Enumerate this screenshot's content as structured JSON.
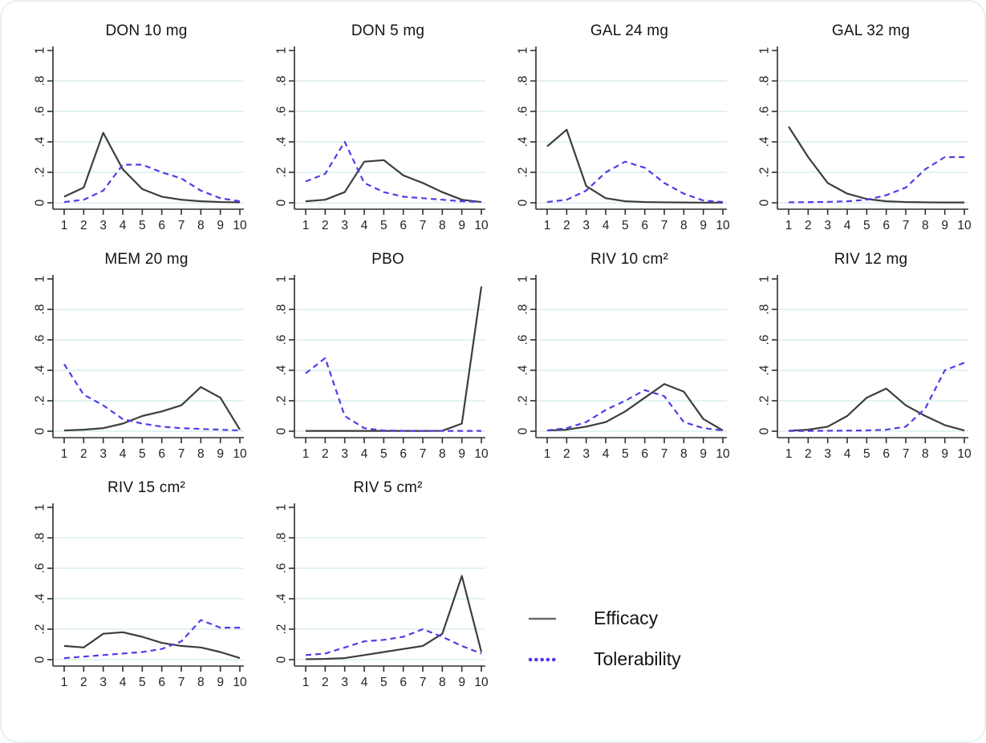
{
  "figure": {
    "background": "#ffffff",
    "border_color": "#e9eff1"
  },
  "colors": {
    "efficacy": "#3d3d3d",
    "tolerability": "#5639e8",
    "grid": "#daedee",
    "axis": "#2f2f2f",
    "legend_line": "#6a6a6a"
  },
  "legend": {
    "position": "bottom-right",
    "items": [
      {
        "label": "Efficacy",
        "style": "solid",
        "color": "#3d3d3d"
      },
      {
        "label": "Tolerability",
        "style": "dotted",
        "color": "#5639e8"
      }
    ]
  },
  "axis": {
    "x_ticks": [
      1,
      2,
      3,
      4,
      5,
      6,
      7,
      8,
      9,
      10
    ],
    "y_ticks": [
      0,
      0.2,
      0.4,
      0.6,
      0.8,
      1
    ],
    "y_tick_labels": [
      "0",
      ".2",
      ".4",
      ".6",
      ".8",
      "1"
    ],
    "grid_values": [
      0,
      0.2,
      0.4,
      0.6,
      0.8
    ],
    "xlim": [
      1,
      10
    ],
    "ylim": [
      0,
      1
    ],
    "y_labels_rotated": true
  },
  "chart_data": [
    {
      "type": "line",
      "title": "DON 10 mg",
      "x": [
        1,
        2,
        3,
        4,
        5,
        6,
        7,
        8,
        9,
        10
      ],
      "series": [
        {
          "name": "Efficacy",
          "values": [
            0.04,
            0.1,
            0.46,
            0.22,
            0.09,
            0.04,
            0.02,
            0.01,
            0.005,
            0.003
          ]
        },
        {
          "name": "Tolerability",
          "values": [
            0.005,
            0.02,
            0.08,
            0.25,
            0.25,
            0.2,
            0.16,
            0.08,
            0.03,
            0.01
          ]
        }
      ]
    },
    {
      "type": "line",
      "title": "DON 5 mg",
      "x": [
        1,
        2,
        3,
        4,
        5,
        6,
        7,
        8,
        9,
        10
      ],
      "series": [
        {
          "name": "Efficacy",
          "values": [
            0.01,
            0.02,
            0.07,
            0.27,
            0.28,
            0.18,
            0.13,
            0.07,
            0.02,
            0.005
          ]
        },
        {
          "name": "Tolerability",
          "values": [
            0.14,
            0.19,
            0.4,
            0.13,
            0.07,
            0.04,
            0.03,
            0.02,
            0.01,
            0.005
          ]
        }
      ]
    },
    {
      "type": "line",
      "title": "GAL 24 mg",
      "x": [
        1,
        2,
        3,
        4,
        5,
        6,
        7,
        8,
        9,
        10
      ],
      "series": [
        {
          "name": "Efficacy",
          "values": [
            0.37,
            0.48,
            0.11,
            0.03,
            0.01,
            0.005,
            0.003,
            0.002,
            0.001,
            0.001
          ]
        },
        {
          "name": "Tolerability",
          "values": [
            0.005,
            0.02,
            0.08,
            0.2,
            0.27,
            0.23,
            0.13,
            0.06,
            0.015,
            0.005
          ]
        }
      ]
    },
    {
      "type": "line",
      "title": "GAL 32 mg",
      "x": [
        1,
        2,
        3,
        4,
        5,
        6,
        7,
        8,
        9,
        10
      ],
      "series": [
        {
          "name": "Efficacy",
          "values": [
            0.5,
            0.3,
            0.13,
            0.06,
            0.025,
            0.01,
            0.005,
            0.003,
            0.002,
            0.002
          ]
        },
        {
          "name": "Tolerability",
          "values": [
            0.003,
            0.004,
            0.006,
            0.01,
            0.02,
            0.05,
            0.1,
            0.22,
            0.3,
            0.3
          ]
        }
      ]
    },
    {
      "type": "line",
      "title": "MEM 20 mg",
      "x": [
        1,
        2,
        3,
        4,
        5,
        6,
        7,
        8,
        9,
        10
      ],
      "series": [
        {
          "name": "Efficacy",
          "values": [
            0.005,
            0.01,
            0.02,
            0.05,
            0.1,
            0.13,
            0.17,
            0.29,
            0.22,
            0.01
          ]
        },
        {
          "name": "Tolerability",
          "values": [
            0.44,
            0.24,
            0.17,
            0.08,
            0.05,
            0.03,
            0.02,
            0.015,
            0.01,
            0.005
          ]
        }
      ]
    },
    {
      "type": "line",
      "title": "PBO",
      "x": [
        1,
        2,
        3,
        4,
        5,
        6,
        7,
        8,
        9,
        10
      ],
      "series": [
        {
          "name": "Efficacy",
          "values": [
            0.002,
            0.002,
            0.002,
            0.002,
            0.002,
            0.002,
            0.002,
            0.003,
            0.05,
            0.95
          ]
        },
        {
          "name": "Tolerability",
          "values": [
            0.38,
            0.48,
            0.1,
            0.02,
            0.005,
            0.003,
            0.002,
            0.002,
            0.002,
            0.002
          ]
        }
      ]
    },
    {
      "type": "line",
      "title": "RIV 10 cm²",
      "x": [
        1,
        2,
        3,
        4,
        5,
        6,
        7,
        8,
        9,
        10
      ],
      "series": [
        {
          "name": "Efficacy",
          "values": [
            0.005,
            0.01,
            0.03,
            0.06,
            0.13,
            0.22,
            0.31,
            0.26,
            0.08,
            0.005
          ]
        },
        {
          "name": "Tolerability",
          "values": [
            0.005,
            0.02,
            0.06,
            0.14,
            0.2,
            0.27,
            0.23,
            0.06,
            0.02,
            0.005
          ]
        }
      ]
    },
    {
      "type": "line",
      "title": "RIV 12 mg",
      "x": [
        1,
        2,
        3,
        4,
        5,
        6,
        7,
        8,
        9,
        10
      ],
      "series": [
        {
          "name": "Efficacy",
          "values": [
            0.003,
            0.01,
            0.03,
            0.1,
            0.22,
            0.28,
            0.17,
            0.1,
            0.04,
            0.005
          ]
        },
        {
          "name": "Tolerability",
          "values": [
            0.002,
            0.002,
            0.003,
            0.004,
            0.005,
            0.01,
            0.03,
            0.15,
            0.4,
            0.45
          ]
        }
      ]
    },
    {
      "type": "line",
      "title": "RIV 15 cm²",
      "x": [
        1,
        2,
        3,
        4,
        5,
        6,
        7,
        8,
        9,
        10
      ],
      "series": [
        {
          "name": "Efficacy",
          "values": [
            0.09,
            0.08,
            0.17,
            0.18,
            0.15,
            0.11,
            0.09,
            0.08,
            0.05,
            0.01
          ]
        },
        {
          "name": "Tolerability",
          "values": [
            0.01,
            0.02,
            0.03,
            0.04,
            0.05,
            0.07,
            0.12,
            0.26,
            0.21,
            0.21
          ]
        }
      ]
    },
    {
      "type": "line",
      "title": "RIV 5 cm²",
      "x": [
        1,
        2,
        3,
        4,
        5,
        6,
        7,
        8,
        9,
        10
      ],
      "series": [
        {
          "name": "Efficacy",
          "values": [
            0.003,
            0.005,
            0.01,
            0.03,
            0.05,
            0.07,
            0.09,
            0.17,
            0.55,
            0.05
          ]
        },
        {
          "name": "Tolerability",
          "values": [
            0.03,
            0.04,
            0.08,
            0.12,
            0.13,
            0.15,
            0.2,
            0.15,
            0.09,
            0.04
          ]
        }
      ]
    }
  ]
}
